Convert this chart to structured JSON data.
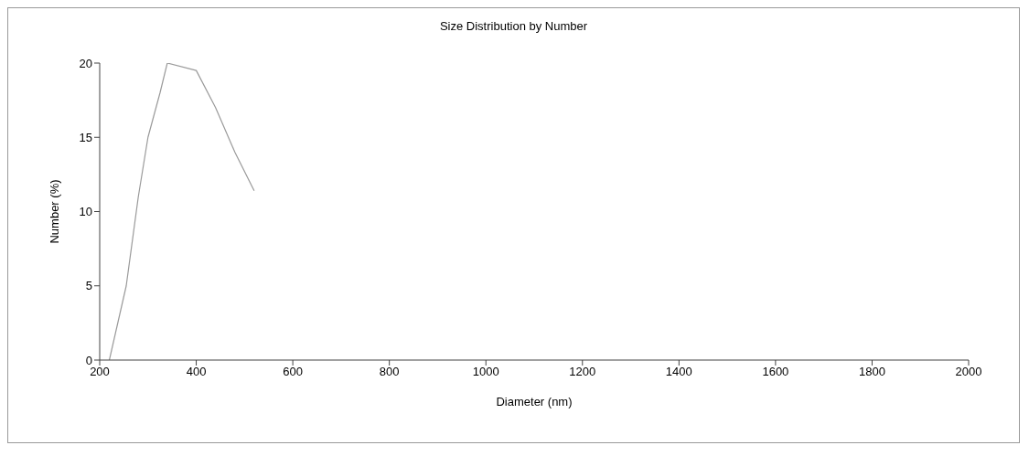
{
  "chart_data": {
    "type": "line",
    "title": "Size Distribution by Number",
    "xlabel": "Diameter (nm)",
    "ylabel": "Number (%)",
    "x": [
      220,
      255,
      280,
      300,
      325,
      340,
      400,
      440,
      480,
      520
    ],
    "series": [
      {
        "color": "#9a9a9a",
        "values": [
          0,
          5,
          11,
          15,
          18,
          20,
          19.5,
          17,
          14,
          11.4
        ]
      }
    ],
    "xlim": [
      200,
      2000
    ],
    "xticks": [
      200,
      400,
      600,
      800,
      1000,
      1200,
      1400,
      1600,
      1800,
      2000
    ],
    "ylim": [
      0,
      20
    ],
    "yticks": [
      0,
      5,
      10,
      15,
      20
    ],
    "grid": false,
    "legend": false,
    "marker": "none",
    "line_style": "solid"
  }
}
